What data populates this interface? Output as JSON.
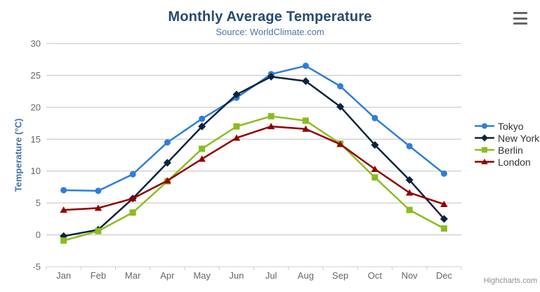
{
  "header": {
    "title": "Monthly Average Temperature",
    "subtitle": "Source: WorldClimate.com"
  },
  "credits": {
    "label": "Highcharts.com"
  },
  "export_menu": {
    "icon": "hamburger-icon"
  },
  "chart_data": {
    "type": "line",
    "title": "Monthly Average Temperature",
    "subtitle": "Source: WorldClimate.com",
    "categories": [
      "Jan",
      "Feb",
      "Mar",
      "Apr",
      "May",
      "Jun",
      "Jul",
      "Aug",
      "Sep",
      "Oct",
      "Nov",
      "Dec"
    ],
    "series": [
      {
        "name": "Tokyo",
        "color": "#2f7ed8",
        "marker": "circle",
        "values": [
          7.0,
          6.9,
          9.5,
          14.5,
          18.2,
          21.5,
          25.2,
          26.5,
          23.3,
          18.3,
          13.9,
          9.6
        ]
      },
      {
        "name": "New York",
        "color": "#0d233a",
        "marker": "diamond",
        "values": [
          -0.2,
          0.8,
          5.7,
          11.3,
          17.0,
          22.0,
          24.8,
          24.1,
          20.1,
          14.1,
          8.6,
          2.5
        ]
      },
      {
        "name": "Berlin",
        "color": "#8bbc21",
        "marker": "square",
        "values": [
          -0.9,
          0.6,
          3.5,
          8.4,
          13.5,
          17.0,
          18.6,
          17.9,
          14.3,
          9.0,
          3.9,
          1.0
        ]
      },
      {
        "name": "London",
        "color": "#910000",
        "marker": "triangle",
        "values": [
          3.9,
          4.2,
          5.7,
          8.5,
          11.9,
          15.2,
          17.0,
          16.6,
          14.2,
          10.3,
          6.6,
          4.8
        ]
      }
    ],
    "xlabel": "",
    "ylabel": "Temperature (°C)",
    "ylim": [
      -5,
      30
    ],
    "ytick_interval": 5,
    "grid": true,
    "legend_position": "right"
  },
  "colors": {
    "title": "#274b6d",
    "subtitle": "#4d759e",
    "axis_label": "#666666",
    "axis_title": "#4572A7",
    "grid_line": "#c0c0c0",
    "axis_line": "#c0d0e0",
    "legend_text": "#333333",
    "credits": "#909090",
    "menu_icon": "#666666",
    "background": "#ffffff"
  }
}
